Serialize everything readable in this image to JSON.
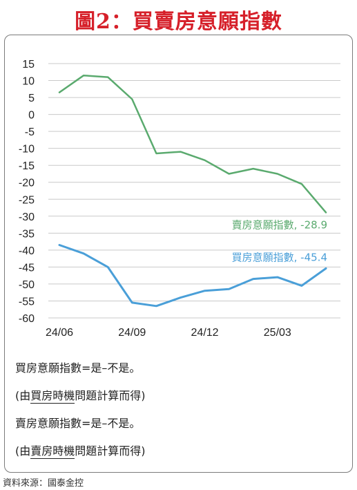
{
  "title": "圖2：買賣房意願指數",
  "chart_data": {
    "type": "line",
    "x": [
      "24/06",
      "24/07",
      "24/08",
      "24/09",
      "24/10",
      "24/11",
      "24/12",
      "25/01",
      "25/02",
      "25/03",
      "25/04",
      "25/05"
    ],
    "x_tick_labels": [
      "24/06",
      "24/09",
      "24/12",
      "25/03"
    ],
    "y_ticks": [
      15,
      10,
      5,
      0,
      -5,
      -10,
      -15,
      -20,
      -25,
      -30,
      -35,
      -40,
      -45,
      -50,
      -55,
      -60
    ],
    "ylim": [
      -60,
      15
    ],
    "grid": true,
    "series": [
      {
        "name": "賣房意願指數",
        "color": "#5aaa6e",
        "values": [
          6.5,
          11.5,
          11,
          4.5,
          -11.5,
          -11,
          -13.5,
          -17.5,
          -16,
          -17.5,
          -20.5,
          -28.9
        ]
      },
      {
        "name": "買房意願指數",
        "color": "#4a9fd8",
        "values": [
          -38.5,
          -41,
          -45,
          -55.5,
          -56.5,
          -54,
          -52,
          -51.5,
          -48.5,
          -48,
          -50.5,
          -45.4
        ]
      }
    ],
    "annotations": [
      {
        "series": "賣房意願指數",
        "text": "賣房意願指數, -28.9"
      },
      {
        "series": "買房意願指數",
        "text": "買房意願指數, -45.4"
      }
    ]
  },
  "notes": {
    "buy_line1": "買房意願指數=是–不是。",
    "buy_line2_open": "(由",
    "buy_line2_under": "買房時機",
    "buy_line2_rest": "問題計算而得)",
    "sell_line1": "賣房意願指數=是–不是。",
    "sell_line2_open": "(由",
    "sell_line2_under": "賣房時機",
    "sell_line2_rest": "問題計算而得)"
  },
  "source": "資料來源：國泰金控"
}
